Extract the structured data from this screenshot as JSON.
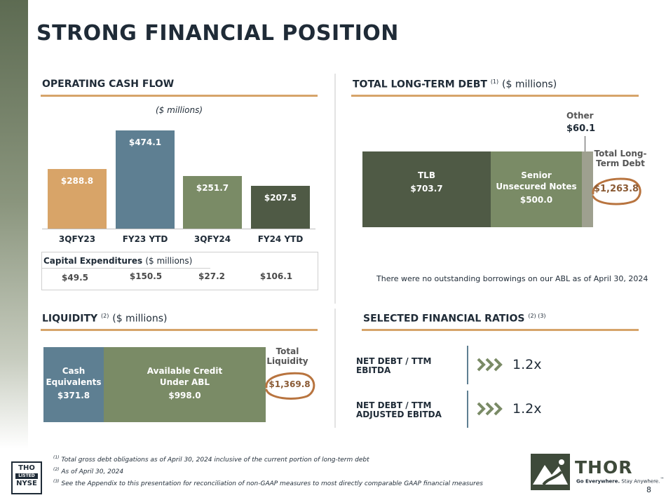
{
  "title": "STRONG FINANCIAL POSITION",
  "operating_cash_flow": {
    "heading": "OPERATING CASH FLOW",
    "units": "($ millions)"
  },
  "chart_data": {
    "type": "bar",
    "categories": [
      "3QFY23",
      "FY23 YTD",
      "3QFY24",
      "FY24 YTD"
    ],
    "values": [
      288.8,
      474.1,
      251.7,
      207.5
    ],
    "value_labels": [
      "$288.8",
      "$474.1",
      "$251.7",
      "$207.5"
    ],
    "colors": [
      "#d8a468",
      "#5e7f92",
      "#7a8b66",
      "#4f5a45"
    ],
    "ylim": [
      0,
      500
    ]
  },
  "capex": {
    "title": "Capital Expenditures",
    "units": "($ millions)",
    "values": [
      "$49.5",
      "$150.5",
      "$27.2",
      "$106.1"
    ]
  },
  "debt": {
    "heading": "TOTAL LONG-TERM DEBT",
    "sup": "(1)",
    "units": "($ millions)",
    "segments": [
      {
        "label1": "TLB",
        "label2": "",
        "value": "$703.7",
        "amount": 703.7,
        "color": "#4f5a45"
      },
      {
        "label1": "Senior",
        "label2": "Unsecured Notes",
        "value": "$500.0",
        "amount": 500.0,
        "color": "#7a8b66"
      },
      {
        "label1": "",
        "label2": "",
        "value": "",
        "amount": 60.1,
        "color": "#9ea08f"
      }
    ],
    "other_label": "Other",
    "other_value": "$60.1",
    "total_label1": "Total Long-",
    "total_label2": "Term Debt",
    "total_value": "$1,263.8",
    "note": "There were no outstanding borrowings on our ABL as of April 30, 2024"
  },
  "liquidity": {
    "heading": "LIQUIDITY",
    "sup": "(2)",
    "units": "($ millions)",
    "segments": [
      {
        "label1": "Cash",
        "label2": "Equivalents",
        "value": "$371.8",
        "amount": 371.8,
        "color": "#5e7f92"
      },
      {
        "label1": "Available Credit",
        "label2": "Under ABL",
        "value": "$998.0",
        "amount": 998.0,
        "color": "#7a8b66"
      }
    ],
    "total_label1": "Total",
    "total_label2": "Liquidity",
    "total_value": "$1,369.8"
  },
  "ratios": {
    "heading": "SELECTED FINANCIAL RATIOS",
    "sup": "(2) (3)",
    "items": [
      {
        "label1": "NET DEBT / TTM",
        "label2": "EBITDA",
        "value": "1.2x"
      },
      {
        "label1": "NET DEBT / TTM",
        "label2": "ADJUSTED EBITDA",
        "value": "1.2x"
      }
    ]
  },
  "footnotes": [
    {
      "mark": "(1)",
      "text": "Total gross debt obligations as of April 30, 2024 inclusive of the current portion of long-term debt"
    },
    {
      "mark": "(2)",
      "text": "As of April 30, 2024"
    },
    {
      "mark": "(3)",
      "text": "See the Appendix to this presentation for reconciliation of non-GAAP measures to most directly comparable GAAP financial measures"
    }
  ],
  "nyse": {
    "line1": "THO",
    "line2": "LISTED",
    "line3": "NYSE"
  },
  "brand": {
    "name": "THOR",
    "tagline_bold": "Go Everywhere.",
    "tagline": " Stay Anywhere.",
    "tm": "™"
  },
  "page_number": "8"
}
